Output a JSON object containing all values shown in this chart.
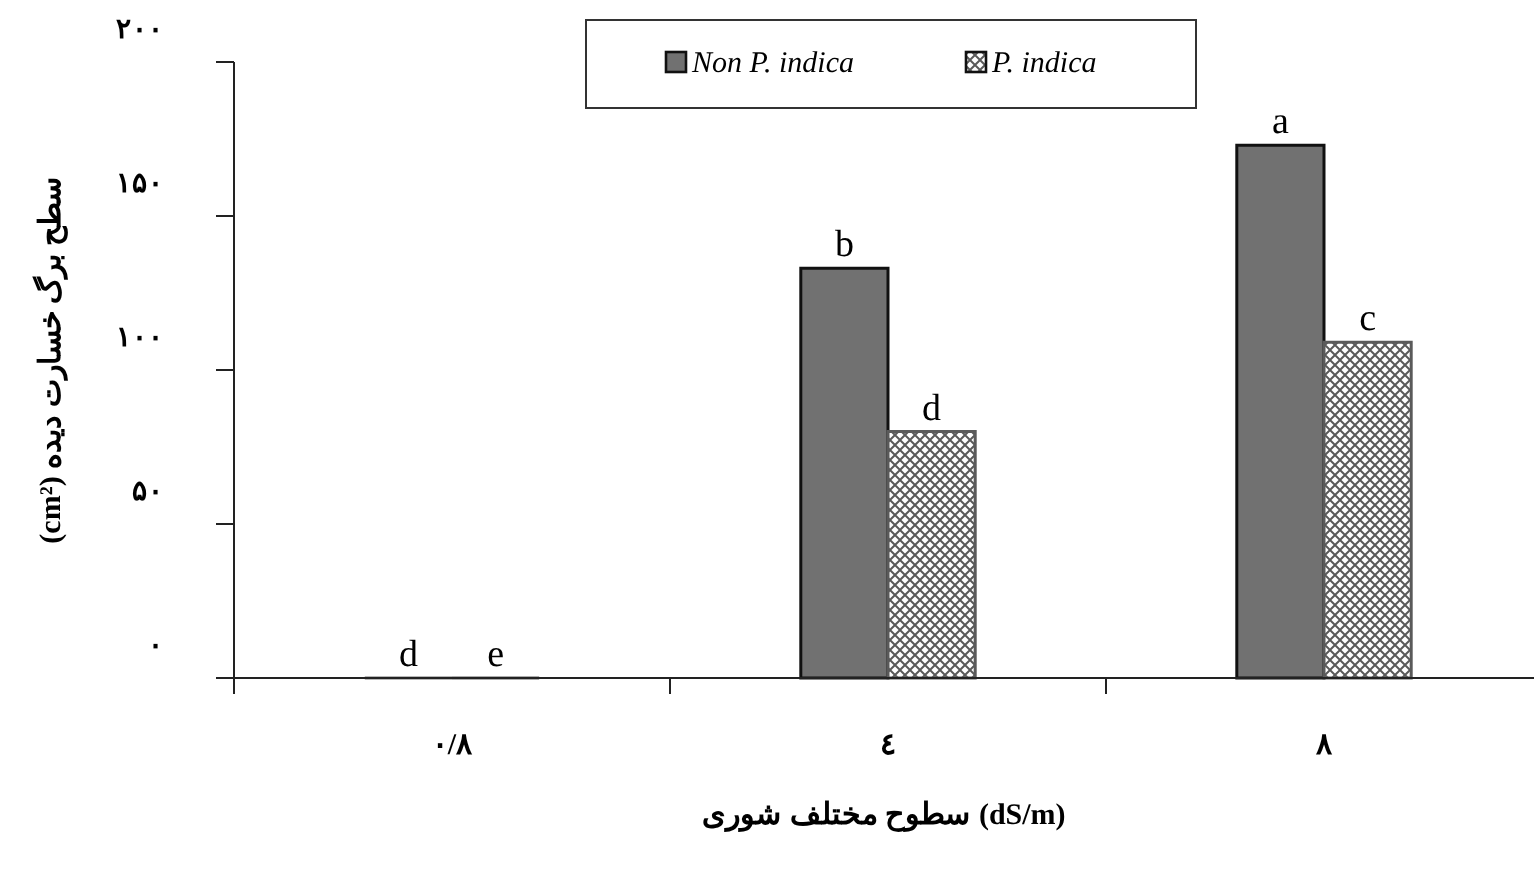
{
  "chart_data": {
    "type": "bar",
    "xlabel": "سطوح مختلف شوری (dS/m)",
    "ylabel": "سطح برگ خسارت دیده (cm²)",
    "categories": [
      "۰/۸",
      "٤",
      "۸"
    ],
    "series": [
      {
        "name": "Non P. indica",
        "color": "#717171",
        "values": [
          0,
          133,
          173
        ],
        "value_labels": [
          "d",
          "b",
          "a"
        ]
      },
      {
        "name": "P. indica",
        "color": "#5a5a5a",
        "values": [
          0,
          80,
          109
        ],
        "value_labels": [
          "e",
          "d",
          "c"
        ]
      }
    ],
    "ylim": [
      0,
      200
    ],
    "yticks": [
      {
        "value": 0,
        "label": "۰"
      },
      {
        "value": 50,
        "label": "۵۰"
      },
      {
        "value": 100,
        "label": "۱۰۰"
      },
      {
        "value": 150,
        "label": "۱۵۰"
      },
      {
        "value": 200,
        "label": "۲۰۰"
      }
    ],
    "legend": "top",
    "grid": false
  }
}
